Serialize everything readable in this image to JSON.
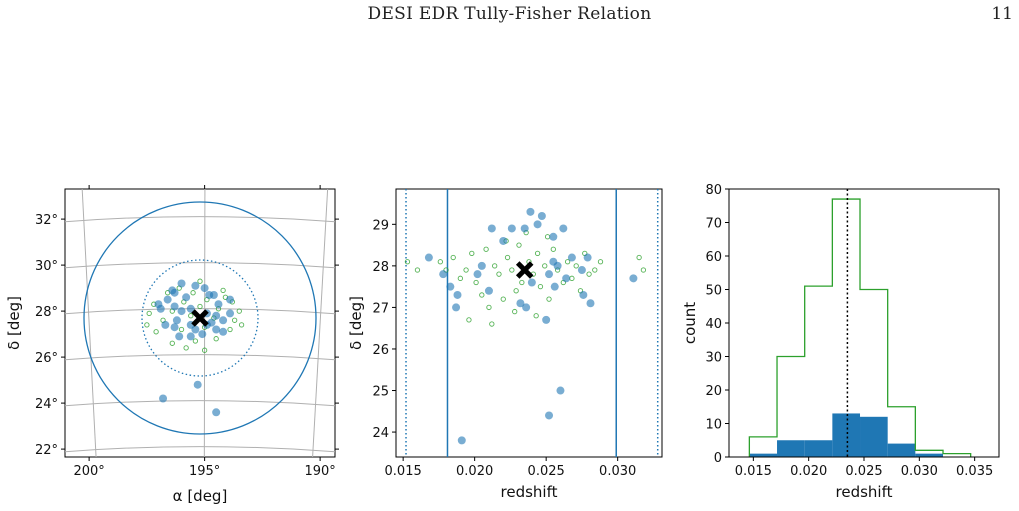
{
  "header": {
    "title": "DESI EDR Tully-Fisher Relation",
    "page_number": "11"
  },
  "colors": {
    "blue": "#1f77b4",
    "green": "#2ca02c",
    "grid": "#b0b0b0",
    "black": "#000000"
  },
  "chart_data": [
    {
      "type": "scatter",
      "panel": "sky",
      "xlabel": "α [deg]",
      "ylabel": "δ [deg]",
      "xticks": [
        "200°",
        "195°",
        "190°"
      ],
      "yticks": [
        "22°",
        "24°",
        "26°",
        "28°",
        "30°",
        "32°"
      ],
      "center": {
        "ra": 195.2,
        "dec": 27.7
      },
      "grid": true,
      "blue_points": [
        {
          "x": 195.4,
          "y": 29.1
        },
        {
          "x": 195.0,
          "y": 29.0
        },
        {
          "x": 196.0,
          "y": 29.2
        },
        {
          "x": 196.4,
          "y": 28.9
        },
        {
          "x": 196.3,
          "y": 28.8
        },
        {
          "x": 195.8,
          "y": 28.6
        },
        {
          "x": 196.6,
          "y": 28.5
        },
        {
          "x": 197.0,
          "y": 28.3
        },
        {
          "x": 194.8,
          "y": 28.7
        },
        {
          "x": 194.6,
          "y": 28.7
        },
        {
          "x": 194.4,
          "y": 28.3
        },
        {
          "x": 193.9,
          "y": 28.5
        },
        {
          "x": 196.3,
          "y": 28.2
        },
        {
          "x": 196.9,
          "y": 28.1
        },
        {
          "x": 196.0,
          "y": 28.0
        },
        {
          "x": 195.6,
          "y": 28.1
        },
        {
          "x": 194.9,
          "y": 27.9
        },
        {
          "x": 194.5,
          "y": 27.8
        },
        {
          "x": 193.9,
          "y": 27.9
        },
        {
          "x": 194.2,
          "y": 27.6
        },
        {
          "x": 196.2,
          "y": 27.6
        },
        {
          "x": 196.7,
          "y": 27.4
        },
        {
          "x": 196.3,
          "y": 27.3
        },
        {
          "x": 195.6,
          "y": 27.4
        },
        {
          "x": 195.4,
          "y": 27.2
        },
        {
          "x": 194.9,
          "y": 27.4
        },
        {
          "x": 194.5,
          "y": 27.2
        },
        {
          "x": 194.2,
          "y": 27.1
        },
        {
          "x": 195.6,
          "y": 26.9
        },
        {
          "x": 195.1,
          "y": 27.0
        },
        {
          "x": 196.1,
          "y": 26.9
        },
        {
          "x": 194.7,
          "y": 27.5
        },
        {
          "x": 195.3,
          "y": 24.8
        },
        {
          "x": 196.8,
          "y": 24.2
        },
        {
          "x": 194.5,
          "y": 23.6
        }
      ],
      "green_points": [
        {
          "x": 194.2,
          "y": 28.9
        },
        {
          "x": 195.5,
          "y": 28.8
        },
        {
          "x": 196.6,
          "y": 28.8
        },
        {
          "x": 193.8,
          "y": 28.4
        },
        {
          "x": 194.9,
          "y": 28.5
        },
        {
          "x": 195.9,
          "y": 28.4
        },
        {
          "x": 197.2,
          "y": 28.3
        },
        {
          "x": 193.5,
          "y": 28.0
        },
        {
          "x": 194.4,
          "y": 28.1
        },
        {
          "x": 195.2,
          "y": 28.2
        },
        {
          "x": 196.4,
          "y": 28.0
        },
        {
          "x": 197.4,
          "y": 27.9
        },
        {
          "x": 193.7,
          "y": 27.6
        },
        {
          "x": 194.6,
          "y": 27.7
        },
        {
          "x": 195.6,
          "y": 27.8
        },
        {
          "x": 196.8,
          "y": 27.6
        },
        {
          "x": 193.9,
          "y": 27.2
        },
        {
          "x": 195.0,
          "y": 27.3
        },
        {
          "x": 196.0,
          "y": 27.2
        },
        {
          "x": 197.1,
          "y": 27.1
        },
        {
          "x": 194.5,
          "y": 26.8
        },
        {
          "x": 195.4,
          "y": 26.7
        },
        {
          "x": 196.4,
          "y": 26.6
        },
        {
          "x": 195.0,
          "y": 26.3
        },
        {
          "x": 195.8,
          "y": 26.4
        },
        {
          "x": 194.1,
          "y": 28.6
        },
        {
          "x": 196.1,
          "y": 29.0
        },
        {
          "x": 195.2,
          "y": 29.3
        },
        {
          "x": 197.5,
          "y": 27.4
        },
        {
          "x": 193.4,
          "y": 27.4
        }
      ]
    },
    {
      "type": "scatter",
      "panel": "redshift-dec",
      "xlabel": "redshift",
      "ylabel": "δ [deg]",
      "xlim": [
        0.0145,
        0.0331
      ],
      "ylim": [
        23.4,
        29.85
      ],
      "xticks": [
        "0.015",
        "0.020",
        "0.025",
        "0.030"
      ],
      "yticks": [
        "24",
        "25",
        "26",
        "27",
        "28",
        "29"
      ],
      "center": {
        "x": 0.0235,
        "y": 27.9
      },
      "solid_lines": [
        0.0181,
        0.0299
      ],
      "dotted_lines": [
        0.0152,
        0.0328
      ],
      "blue_points": [
        {
          "x": 0.0168,
          "y": 28.2
        },
        {
          "x": 0.0178,
          "y": 27.8
        },
        {
          "x": 0.0183,
          "y": 27.5
        },
        {
          "x": 0.0188,
          "y": 27.3
        },
        {
          "x": 0.0187,
          "y": 27.0
        },
        {
          "x": 0.0202,
          "y": 27.8
        },
        {
          "x": 0.0205,
          "y": 28.0
        },
        {
          "x": 0.021,
          "y": 27.4
        },
        {
          "x": 0.0212,
          "y": 28.9
        },
        {
          "x": 0.022,
          "y": 28.6
        },
        {
          "x": 0.0226,
          "y": 28.9
        },
        {
          "x": 0.0235,
          "y": 28.9
        },
        {
          "x": 0.0239,
          "y": 29.3
        },
        {
          "x": 0.0244,
          "y": 29.0
        },
        {
          "x": 0.0247,
          "y": 29.2
        },
        {
          "x": 0.0255,
          "y": 28.7
        },
        {
          "x": 0.0262,
          "y": 28.9
        },
        {
          "x": 0.0255,
          "y": 28.1
        },
        {
          "x": 0.0258,
          "y": 28.0
        },
        {
          "x": 0.0252,
          "y": 27.8
        },
        {
          "x": 0.0268,
          "y": 28.2
        },
        {
          "x": 0.0275,
          "y": 27.9
        },
        {
          "x": 0.0279,
          "y": 28.2
        },
        {
          "x": 0.0281,
          "y": 27.1
        },
        {
          "x": 0.0276,
          "y": 27.3
        },
        {
          "x": 0.024,
          "y": 27.6
        },
        {
          "x": 0.0232,
          "y": 27.1
        },
        {
          "x": 0.0236,
          "y": 27.0
        },
        {
          "x": 0.025,
          "y": 26.7
        },
        {
          "x": 0.0256,
          "y": 27.5
        },
        {
          "x": 0.0264,
          "y": 27.7
        },
        {
          "x": 0.0311,
          "y": 27.7
        },
        {
          "x": 0.026,
          "y": 25.0
        },
        {
          "x": 0.0252,
          "y": 24.4
        },
        {
          "x": 0.0191,
          "y": 23.8
        }
      ],
      "green_points": [
        {
          "x": 0.0176,
          "y": 28.1
        },
        {
          "x": 0.018,
          "y": 27.9
        },
        {
          "x": 0.0185,
          "y": 28.2
        },
        {
          "x": 0.019,
          "y": 27.7
        },
        {
          "x": 0.0194,
          "y": 27.9
        },
        {
          "x": 0.0198,
          "y": 28.3
        },
        {
          "x": 0.0201,
          "y": 27.6
        },
        {
          "x": 0.0205,
          "y": 27.3
        },
        {
          "x": 0.0208,
          "y": 28.4
        },
        {
          "x": 0.021,
          "y": 27.0
        },
        {
          "x": 0.0214,
          "y": 28.0
        },
        {
          "x": 0.0217,
          "y": 27.8
        },
        {
          "x": 0.022,
          "y": 27.2
        },
        {
          "x": 0.0223,
          "y": 28.2
        },
        {
          "x": 0.0226,
          "y": 27.9
        },
        {
          "x": 0.0229,
          "y": 27.4
        },
        {
          "x": 0.0231,
          "y": 28.5
        },
        {
          "x": 0.0233,
          "y": 27.6
        },
        {
          "x": 0.0238,
          "y": 28.1
        },
        {
          "x": 0.0241,
          "y": 27.8
        },
        {
          "x": 0.0244,
          "y": 28.3
        },
        {
          "x": 0.0246,
          "y": 27.5
        },
        {
          "x": 0.0249,
          "y": 28.0
        },
        {
          "x": 0.0252,
          "y": 27.2
        },
        {
          "x": 0.0255,
          "y": 28.4
        },
        {
          "x": 0.0258,
          "y": 27.9
        },
        {
          "x": 0.0262,
          "y": 27.6
        },
        {
          "x": 0.0265,
          "y": 28.1
        },
        {
          "x": 0.0268,
          "y": 27.7
        },
        {
          "x": 0.0271,
          "y": 28.0
        },
        {
          "x": 0.0274,
          "y": 27.4
        },
        {
          "x": 0.0277,
          "y": 28.3
        },
        {
          "x": 0.028,
          "y": 27.8
        },
        {
          "x": 0.0284,
          "y": 27.9
        },
        {
          "x": 0.0288,
          "y": 28.1
        },
        {
          "x": 0.0228,
          "y": 26.9
        },
        {
          "x": 0.0243,
          "y": 26.8
        },
        {
          "x": 0.0236,
          "y": 28.8
        },
        {
          "x": 0.0222,
          "y": 28.6
        },
        {
          "x": 0.0251,
          "y": 28.7
        },
        {
          "x": 0.0315,
          "y": 28.2
        },
        {
          "x": 0.0318,
          "y": 27.9
        },
        {
          "x": 0.0196,
          "y": 26.7
        },
        {
          "x": 0.0212,
          "y": 26.6
        },
        {
          "x": 0.016,
          "y": 27.9
        },
        {
          "x": 0.0153,
          "y": 28.1
        }
      ]
    },
    {
      "type": "histogram",
      "panel": "redshift-count",
      "xlabel": "redshift",
      "ylabel": "count",
      "xlim": [
        0.0128,
        0.0372
      ],
      "ylim": [
        0,
        80
      ],
      "xticks": [
        "0.015",
        "0.020",
        "0.025",
        "0.030",
        "0.035"
      ],
      "yticks": [
        "0",
        "10",
        "20",
        "30",
        "40",
        "50",
        "60",
        "70",
        "80"
      ],
      "bin_edges": [
        0.01464,
        0.01714,
        0.01964,
        0.02214,
        0.02464,
        0.02714,
        0.02964,
        0.03214,
        0.03464
      ],
      "step_counts": [
        6,
        30,
        51,
        77,
        50,
        15,
        2,
        1
      ],
      "filled_counts": [
        1,
        5,
        5,
        13,
        12,
        4,
        1,
        0
      ],
      "vline": 0.0235
    }
  ]
}
